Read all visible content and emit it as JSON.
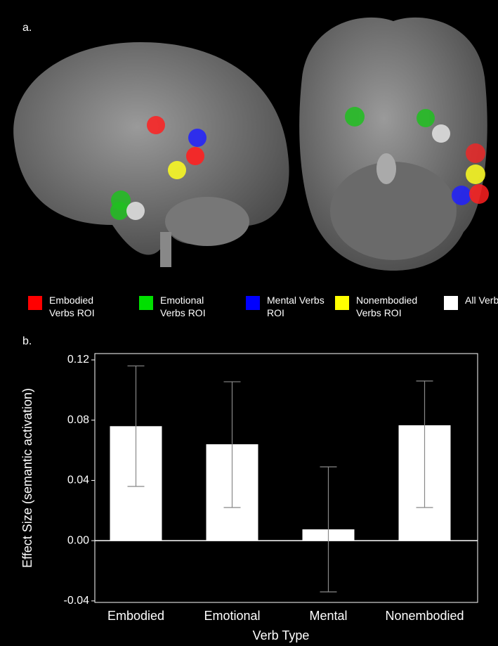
{
  "panel_labels": [
    "a.",
    "b."
  ],
  "legend": [
    "Embodied Verbs ROI",
    "Emotional Verbs ROI",
    "Mental Verbs ROI",
    "Nonembodied Verbs ROI",
    "All Verbs ROI"
  ],
  "legend_colors": [
    "#ff0000",
    "#00e000",
    "#0000ff",
    "#ffff00",
    "#ffffff"
  ],
  "chart_data": {
    "type": "bar",
    "x_label": "Verb Type",
    "y_label": "Effect Size (semantic activation)",
    "categories": [
      "Embodied",
      "Emotional",
      "Mental",
      "Nonembodied"
    ],
    "values": [
      0.076,
      0.064,
      0.0075,
      0.0766
    ],
    "ci_low": [
      0.036,
      0.022,
      -0.034,
      0.022
    ],
    "ci_high": [
      0.116,
      0.1055,
      0.049,
      0.106
    ],
    "color": "#ffffff",
    "error_color": "#888888",
    "ylim": [
      -0.041,
      0.1242
    ],
    "yticks": [
      {
        "value": -0.04,
        "label": "-0.04"
      },
      {
        "value": 0,
        "label": "0.00"
      },
      0.04,
      0.08,
      0.12
    ]
  }
}
